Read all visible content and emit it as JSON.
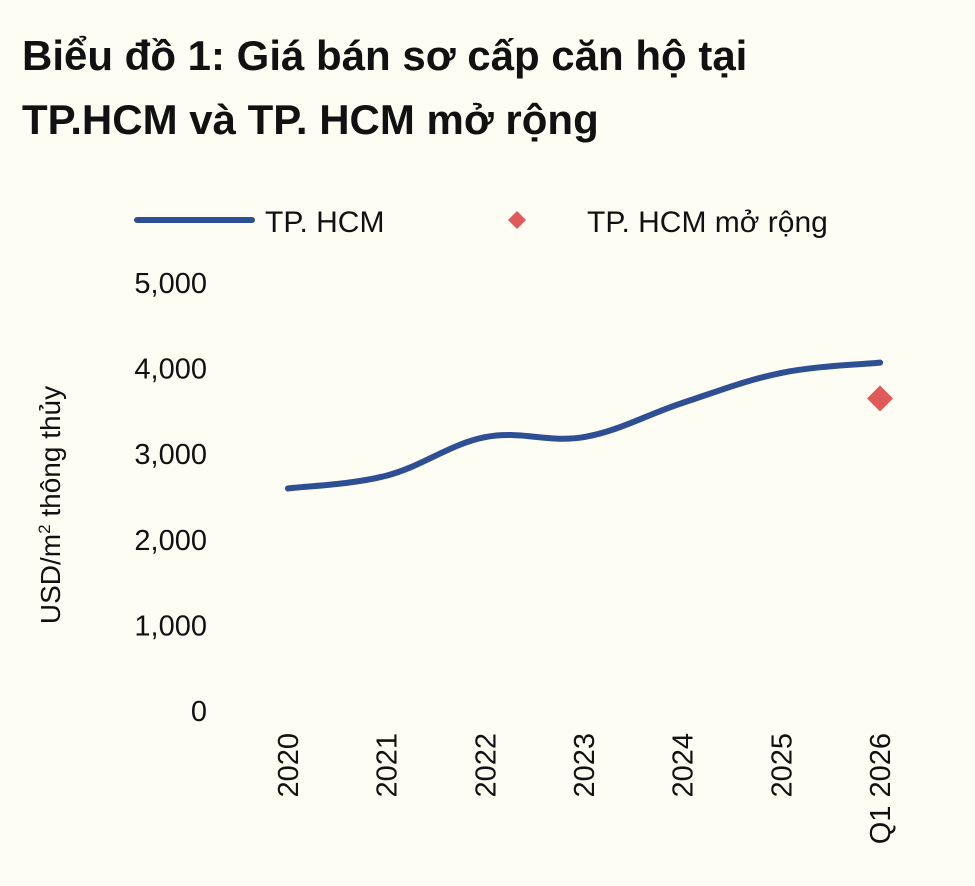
{
  "title_lines": [
    "Biểu đồ 1: Giá bán sơ cấp căn hộ tại",
    "TP.HCM và TP. HCM mở rộng"
  ],
  "colors": {
    "line": "#2f4f94",
    "marker": "#e05a5a",
    "background": "#fdfdf3",
    "text": "#111111"
  },
  "chart_data": {
    "type": "line",
    "title": "Biểu đồ 1: Giá bán sơ cấp căn hộ tại TP.HCM và TP. HCM mở rộng",
    "ylabel": "USD/m² thông thủy",
    "xlabel": "",
    "categories": [
      "2020",
      "2021",
      "2022",
      "2023",
      "2024",
      "2025",
      "Q1 2026"
    ],
    "ylim": [
      0,
      5000
    ],
    "yticks": [
      0,
      1000,
      2000,
      3000,
      4000,
      5000
    ],
    "ytick_labels": [
      "0",
      "1,000",
      "2,000",
      "3,000",
      "4,000",
      "5,000"
    ],
    "grid": false,
    "legend_position": "top",
    "series": [
      {
        "name": "TP. HCM",
        "style": "line",
        "values": [
          2600,
          2750,
          3200,
          3200,
          3600,
          3950,
          4070
        ]
      },
      {
        "name": "TP. HCM mở rộng",
        "style": "marker",
        "values": [
          null,
          null,
          null,
          null,
          null,
          null,
          3650
        ]
      }
    ]
  }
}
